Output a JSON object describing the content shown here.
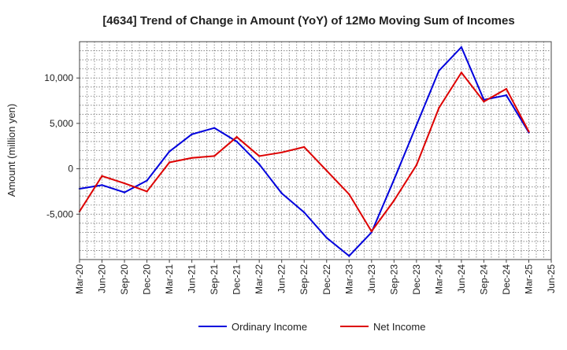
{
  "chart_data": {
    "type": "line",
    "title": "[4634]  Trend of Change in Amount (YoY) of 12Mo Moving Sum of Incomes",
    "xlabel": "",
    "ylabel": "Amount (million yen)",
    "x_tick_labels": [
      "Mar-20",
      "Jun-20",
      "Sep-20",
      "Dec-20",
      "Mar-21",
      "Jun-21",
      "Sep-21",
      "Dec-21",
      "Mar-22",
      "Jun-22",
      "Sep-22",
      "Dec-22",
      "Mar-23",
      "Jun-23",
      "Sep-23",
      "Dec-23",
      "Mar-24",
      "Jun-24",
      "Sep-24",
      "Dec-24",
      "Mar-25",
      "Jun-25"
    ],
    "y_ticks": [
      -5000,
      0,
      5000,
      10000
    ],
    "y_tick_labels": [
      "-5,000",
      "0",
      "5,000",
      "10,000"
    ],
    "ylim": [
      -10000,
      14000
    ],
    "grid": true,
    "legend_position": "bottom-center",
    "series": [
      {
        "name": "Ordinary Income",
        "color": "#0000dd",
        "values": [
          -2200,
          -1800,
          -2600,
          -1300,
          1900,
          3800,
          4500,
          3000,
          500,
          -2700,
          -4800,
          -7600,
          -9600,
          -7000,
          -1200,
          4800,
          10800,
          13400,
          7600,
          8100,
          4000,
          null
        ]
      },
      {
        "name": "Net Income",
        "color": "#dd0000",
        "values": [
          -4700,
          -800,
          -1600,
          -2500,
          700,
          1200,
          1400,
          3500,
          1400,
          1800,
          2400,
          -200,
          -2800,
          -6900,
          -3500,
          400,
          6700,
          10600,
          7400,
          8800,
          4100,
          null
        ]
      }
    ]
  }
}
